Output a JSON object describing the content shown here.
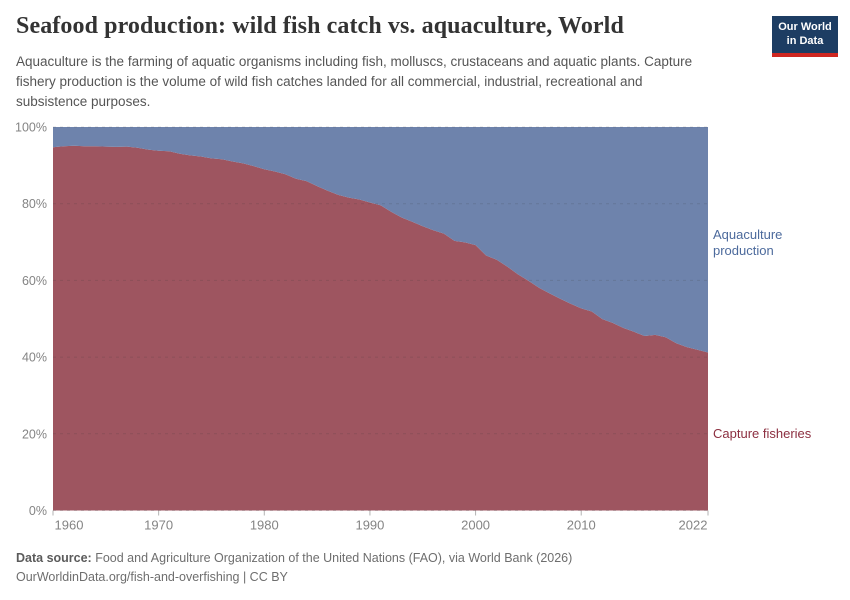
{
  "header": {
    "title": "Seafood production: wild fish catch vs. aquaculture, World",
    "subtitle_lines": [
      "Aquaculture is the farming of aquatic organisms including fish, molluscs, crustaceans and aquatic plants. Capture",
      "fishery production is the volume of wild fish catches landed for all commercial, industrial, recreational and",
      "subsistence purposes."
    ],
    "logo": {
      "line1": "Our World",
      "line2": "in Data",
      "bg_color": "#1d3d63",
      "bar_color": "#cf2721"
    }
  },
  "chart_data": {
    "type": "area",
    "stacked_percent": true,
    "title": "Seafood production: wild fish catch vs. aquaculture, World",
    "xlabel": "",
    "ylabel": "",
    "ylim": [
      0,
      100
    ],
    "grid": "dashed, horizontal only",
    "legend_position": "right edge entity labels",
    "x": [
      1960,
      1961,
      1962,
      1963,
      1964,
      1965,
      1966,
      1967,
      1968,
      1969,
      1970,
      1971,
      1972,
      1973,
      1974,
      1975,
      1976,
      1977,
      1978,
      1979,
      1980,
      1981,
      1982,
      1983,
      1984,
      1985,
      1986,
      1987,
      1988,
      1989,
      1990,
      1991,
      1992,
      1993,
      1994,
      1995,
      1996,
      1997,
      1998,
      1999,
      2000,
      2001,
      2002,
      2003,
      2004,
      2005,
      2006,
      2007,
      2008,
      2009,
      2010,
      2011,
      2012,
      2013,
      2014,
      2015,
      2016,
      2017,
      2018,
      2019,
      2020,
      2021,
      2022
    ],
    "series": [
      {
        "name": "Capture fisheries",
        "fill": "#9e5560",
        "label_color": "#8c2f40",
        "values": [
          94.7,
          95.0,
          95.1,
          95.0,
          95.0,
          94.9,
          94.8,
          94.9,
          94.6,
          94.1,
          93.8,
          93.7,
          93.0,
          92.6,
          92.3,
          91.8,
          91.6,
          91.0,
          90.5,
          89.8,
          89.0,
          88.4,
          87.7,
          86.5,
          85.9,
          84.6,
          83.4,
          82.3,
          81.6,
          81.1,
          80.3,
          79.6,
          77.9,
          76.4,
          75.3,
          74.1,
          73.1,
          72.2,
          70.3,
          69.9,
          69.2,
          66.5,
          65.4,
          63.6,
          61.6,
          59.9,
          58.1,
          56.6,
          55.2,
          53.9,
          52.7,
          51.9,
          49.9,
          48.9,
          47.6,
          46.6,
          45.5,
          45.8,
          45.2,
          43.6,
          42.6,
          41.9,
          41.2
        ]
      },
      {
        "name": "Aquaculture production",
        "fill": "#6e83ac",
        "label_color": "#4c6a9c",
        "values": [
          5.3,
          5.0,
          4.9,
          5.0,
          5.0,
          5.1,
          5.2,
          5.1,
          5.4,
          5.9,
          6.2,
          6.3,
          7.0,
          7.4,
          7.7,
          8.2,
          8.4,
          9.0,
          9.5,
          10.2,
          11.0,
          11.6,
          12.3,
          13.5,
          14.1,
          15.4,
          16.6,
          17.7,
          18.4,
          18.9,
          19.7,
          20.4,
          22.1,
          23.6,
          24.7,
          25.9,
          26.9,
          27.8,
          29.7,
          30.1,
          30.8,
          33.5,
          34.6,
          36.4,
          38.4,
          40.1,
          41.9,
          43.4,
          44.8,
          46.1,
          47.3,
          48.1,
          50.1,
          51.1,
          52.4,
          53.4,
          54.5,
          54.2,
          54.8,
          56.4,
          57.4,
          58.1,
          58.8
        ]
      }
    ],
    "xticks": [
      {
        "v": 1960,
        "label": "1960"
      },
      {
        "v": 1970,
        "label": "1970"
      },
      {
        "v": 1980,
        "label": "1980"
      },
      {
        "v": 1990,
        "label": "1990"
      },
      {
        "v": 2000,
        "label": "2000"
      },
      {
        "v": 2010,
        "label": "2010"
      },
      {
        "v": 2022,
        "label": "2022"
      }
    ],
    "yticks": [
      {
        "v": 0,
        "label": "0%"
      },
      {
        "v": 20,
        "label": "20%"
      },
      {
        "v": 40,
        "label": "40%"
      },
      {
        "v": 60,
        "label": "60%"
      },
      {
        "v": 80,
        "label": "80%"
      },
      {
        "v": 100,
        "label": "100%"
      }
    ],
    "axis_text_color": "#848484"
  },
  "footer": {
    "data_source_label": "Data source:",
    "data_source_text": " Food and Agriculture Organization of the United Nations (FAO), via World Bank (2026)",
    "url_line": "OurWorldinData.org/fish-and-overfishing | CC BY"
  }
}
